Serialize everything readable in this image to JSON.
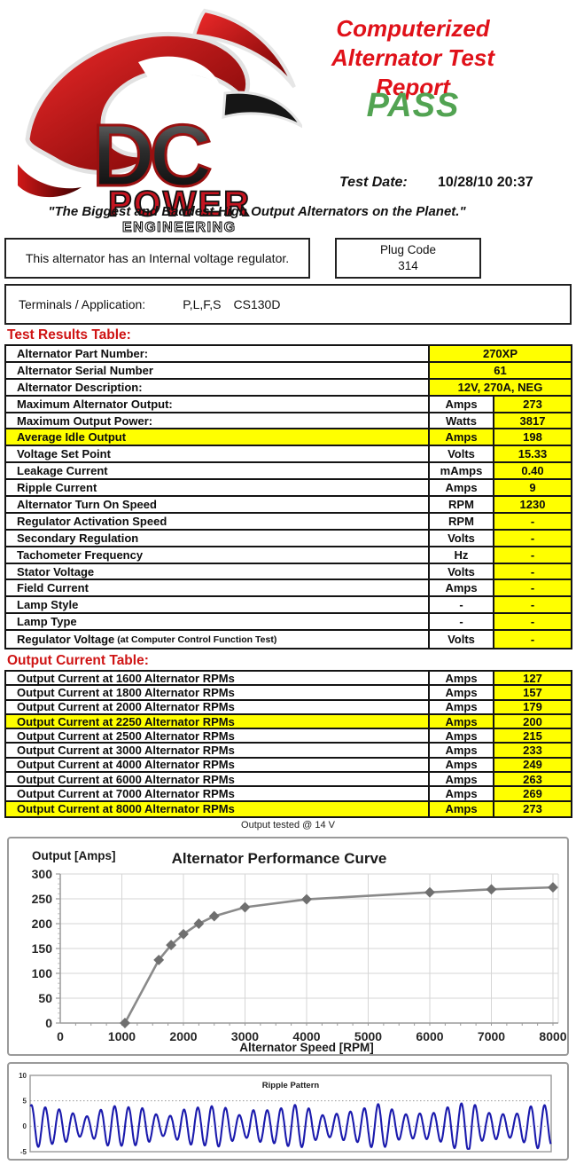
{
  "header": {
    "title_line1": "Computerized",
    "title_line2": "Alternator Test Report",
    "result": "PASS",
    "test_date_label": "Test Date:",
    "test_date_value": "10/28/10 20:37",
    "tagline": "\"The Biggest and Baddest High Output Alternators on the Planet.\"",
    "logo": {
      "brand_top": "DC",
      "brand_mid": "POWER",
      "brand_bottom": "ENGINEERING"
    }
  },
  "info": {
    "regulator_note": "This alternator has an Internal voltage regulator.",
    "plug_code_label": "Plug Code",
    "plug_code_value": "314",
    "terminals_label": "Terminals / Application:",
    "terminals_value": "P,L,F,S",
    "application_value": "CS130D"
  },
  "test_results": {
    "heading": "Test Results Table:",
    "rows": [
      {
        "label": "Alternator Part Number:",
        "span": true,
        "value": "270XP"
      },
      {
        "label": "Alternator Serial Number",
        "span": true,
        "value": "61"
      },
      {
        "label": "Alternator Description:",
        "span": true,
        "value": "12V, 270A, NEG"
      },
      {
        "label": "Maximum Alternator Output:",
        "unit": "Amps",
        "value": "273"
      },
      {
        "label": "Maximum Output Power:",
        "unit": "Watts",
        "value": "3817"
      },
      {
        "label": "Average Idle Output",
        "unit": "Amps",
        "value": "198",
        "highlight": true
      },
      {
        "label": "Voltage Set Point",
        "unit": "Volts",
        "value": "15.33"
      },
      {
        "label": "Leakage Current",
        "unit": "mAmps",
        "value": "0.40"
      },
      {
        "label": "Ripple Current",
        "unit": "Amps",
        "value": "9"
      },
      {
        "label": "Alternator Turn On Speed",
        "unit": "RPM",
        "value": "1230"
      },
      {
        "label": "Regulator Activation Speed",
        "unit": "RPM",
        "value": "-"
      },
      {
        "label": "Secondary Regulation",
        "unit": "Volts",
        "value": "-"
      },
      {
        "label": "Tachometer Frequency",
        "unit": "Hz",
        "value": "-"
      },
      {
        "label": "Stator Voltage",
        "unit": "Volts",
        "value": "-"
      },
      {
        "label": "Field Current",
        "unit": "Amps",
        "value": "-"
      },
      {
        "label": "Lamp Style",
        "unit": "-",
        "value": "-"
      },
      {
        "label": "Lamp Type",
        "unit": "-",
        "value": "-"
      },
      {
        "label": "Regulator Voltage",
        "label_suffix": "(at Computer Control Function Test)",
        "unit": "Volts",
        "value": "-"
      }
    ]
  },
  "output_current": {
    "heading": "Output Current Table:",
    "rows": [
      {
        "label": "Output Current at 1600 Alternator RPMs",
        "unit": "Amps",
        "value": "127"
      },
      {
        "label": "Output Current at 1800 Alternator RPMs",
        "unit": "Amps",
        "value": "157"
      },
      {
        "label": "Output Current at 2000 Alternator RPMs",
        "unit": "Amps",
        "value": "179"
      },
      {
        "label": "Output Current at 2250 Alternator RPMs",
        "unit": "Amps",
        "value": "200",
        "highlight": true
      },
      {
        "label": "Output Current at 2500 Alternator RPMs",
        "unit": "Amps",
        "value": "215"
      },
      {
        "label": "Output Current at 3000 Alternator RPMs",
        "unit": "Amps",
        "value": "233"
      },
      {
        "label": "Output Current at 4000 Alternator RPMs",
        "unit": "Amps",
        "value": "249"
      },
      {
        "label": "Output Current at 6000 Alternator RPMs",
        "unit": "Amps",
        "value": "263"
      },
      {
        "label": "Output Current at 7000 Alternator RPMs",
        "unit": "Amps",
        "value": "269"
      },
      {
        "label": "Output Current at 8000 Alternator RPMs",
        "unit": "Amps",
        "value": "273",
        "highlight": true
      }
    ],
    "footnote": "Output tested @ 14 V"
  },
  "chart_data": [
    {
      "type": "line",
      "title": "Alternator Performance Curve",
      "xlabel": "Alternator Speed [RPM]",
      "ylabel": "Output [Amps]",
      "xlim": [
        0,
        8150
      ],
      "ylim": [
        0,
        300
      ],
      "xticks": [
        0,
        1000,
        2000,
        3000,
        4000,
        5000,
        6000,
        7000,
        8000
      ],
      "yticks": [
        0,
        50,
        100,
        150,
        200,
        250,
        300
      ],
      "x_minor_step": 250,
      "grid": "light gray major gridlines, minor tick stubs on axes",
      "legend": "none",
      "marker": "diamond",
      "points": [
        [
          1050,
          0
        ],
        [
          1600,
          127
        ],
        [
          1800,
          157
        ],
        [
          2000,
          179
        ],
        [
          2250,
          200
        ],
        [
          2500,
          215
        ],
        [
          3000,
          233
        ],
        [
          4000,
          249
        ],
        [
          6000,
          263
        ],
        [
          7000,
          269
        ],
        [
          8000,
          273
        ]
      ]
    },
    {
      "type": "line",
      "title": "Ripple Pattern",
      "ylim": [
        -5,
        10
      ],
      "yticks": [
        10,
        5,
        0,
        -5
      ],
      "dotted_gridlines_at": [
        5,
        0
      ],
      "legend": "none",
      "description": "Dense blue ripple waveform, ~38 oscillations, peaks ~+2 to +5.2 A, troughs ~-2 to -4.4 A",
      "waveform": {
        "cycles": 37.5,
        "phase": 1.2,
        "base_amplitude": 3.15,
        "slow_mod_amplitude": 0.95,
        "slow_mod_freq": 6.2,
        "slow_mod_phase": 0.9,
        "fast_mod_amplitude": 0.3,
        "fast_mod_freq": 13.3,
        "fast_mod_phase": 2.0,
        "spike_positions": [
          0.427,
          0.848
        ],
        "spike_gain": 0.4,
        "spike_width": 0.009,
        "clamp_min": -4.45,
        "clamp_max": 5.25
      }
    }
  ],
  "colors": {
    "accent_red": "#e01119",
    "heading_red": "#cf1414",
    "pass_green": "#52a352",
    "highlight_yellow": "#ffff00",
    "curve_gray": "#8a8a8a",
    "marker_gray": "#6f6f6f",
    "ripple_blue": "#1b1bad",
    "grid_gray": "#d6d6d6",
    "axis_gray": "#9a9a9a"
  }
}
